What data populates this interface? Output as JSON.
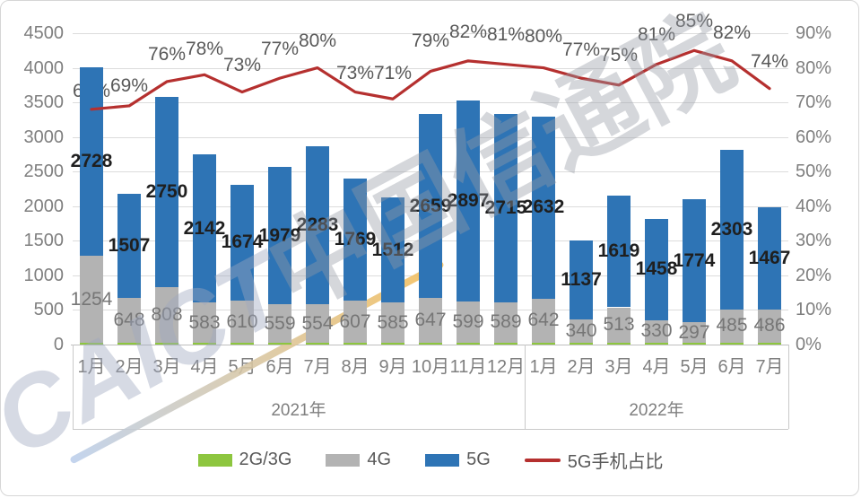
{
  "watermark": {
    "latin": "CAICT",
    "cjk": "中国信通院"
  },
  "chart_data": {
    "type": "bar",
    "subtype": "stacked-bars-with-line",
    "categories": [
      "1月",
      "2月",
      "3月",
      "4月",
      "5月",
      "6月",
      "7月",
      "8月",
      "9月",
      "10月",
      "11月",
      "12月",
      "1月",
      "2月",
      "3月",
      "4月",
      "5月",
      "6月",
      "7月"
    ],
    "groups": [
      {
        "label": "2021年",
        "span": 12
      },
      {
        "label": "2022年",
        "span": 7
      }
    ],
    "series": [
      {
        "name": "2G/3G",
        "type": "bar",
        "color": "#8dc63f",
        "values": [
          25,
          25,
          25,
          25,
          25,
          25,
          25,
          25,
          25,
          25,
          25,
          25,
          25,
          25,
          25,
          25,
          25,
          25,
          25
        ]
      },
      {
        "name": "4G",
        "type": "bar",
        "color": "#b3b3b3",
        "values": [
          1254,
          648,
          808,
          583,
          610,
          559,
          554,
          607,
          585,
          647,
          599,
          589,
          642,
          340,
          513,
          330,
          297,
          485,
          486
        ]
      },
      {
        "name": "5G",
        "type": "bar",
        "color": "#2e74b5",
        "values": [
          2728,
          1507,
          2750,
          2142,
          1674,
          1979,
          2283,
          1769,
          1512,
          2659,
          2897,
          2715,
          2632,
          1137,
          1619,
          1458,
          1774,
          2303,
          1467
        ]
      },
      {
        "name": "5G手机占比",
        "type": "line",
        "color": "#b5302f",
        "unit": "%",
        "values": [
          68,
          69,
          76,
          78,
          73,
          77,
          80,
          73,
          71,
          79,
          82,
          81,
          80,
          77,
          75,
          81,
          85,
          82,
          74
        ]
      }
    ],
    "axes": {
      "left": {
        "min": 0,
        "max": 4500,
        "step": 500,
        "ticks": [
          "4500",
          "4000",
          "3500",
          "3000",
          "2500",
          "2000",
          "1500",
          "1000",
          "500",
          "0"
        ]
      },
      "right": {
        "min": 0,
        "max": 90,
        "step": 10,
        "ticks": [
          "90%",
          "80%",
          "70%",
          "60%",
          "50%",
          "40%",
          "30%",
          "20%",
          "10%",
          "0%"
        ]
      }
    },
    "legend_position": "bottom",
    "grid": true
  }
}
